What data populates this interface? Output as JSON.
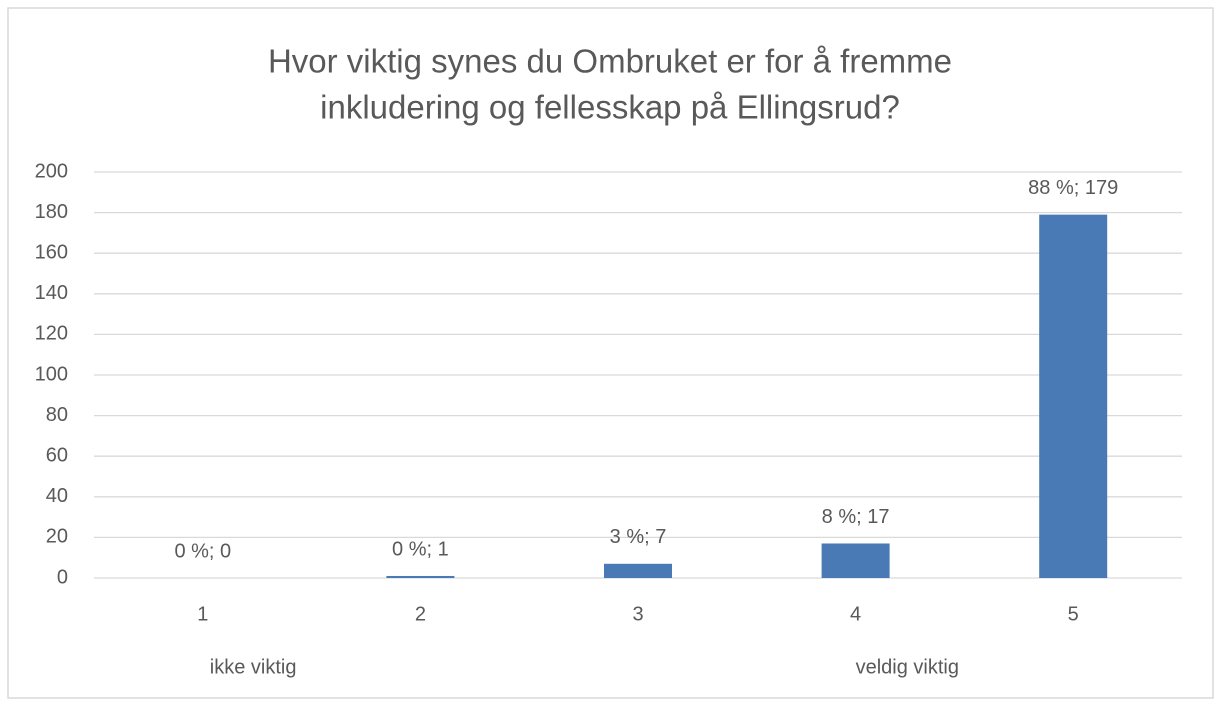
{
  "chart_data": {
    "type": "bar",
    "title": [
      "Hvor viktig synes du Ombruket er for å fremme",
      "inkludering og fellesskap på Ellingsrud?"
    ],
    "categories": [
      "1",
      "2",
      "3",
      "4",
      "5"
    ],
    "values": [
      0,
      1,
      7,
      17,
      179
    ],
    "value_labels": [
      "0 %; 0",
      "0 %; 1",
      "3 %; 7",
      "8 %; 17",
      "88 %; 179"
    ],
    "color": "#4a7ab5",
    "ylim": [
      0,
      200
    ],
    "yticks": [
      0,
      20,
      40,
      60,
      80,
      100,
      120,
      140,
      160,
      180,
      200
    ],
    "grid": true,
    "annotations": [
      "ikke viktig",
      "veldig viktig"
    ]
  }
}
